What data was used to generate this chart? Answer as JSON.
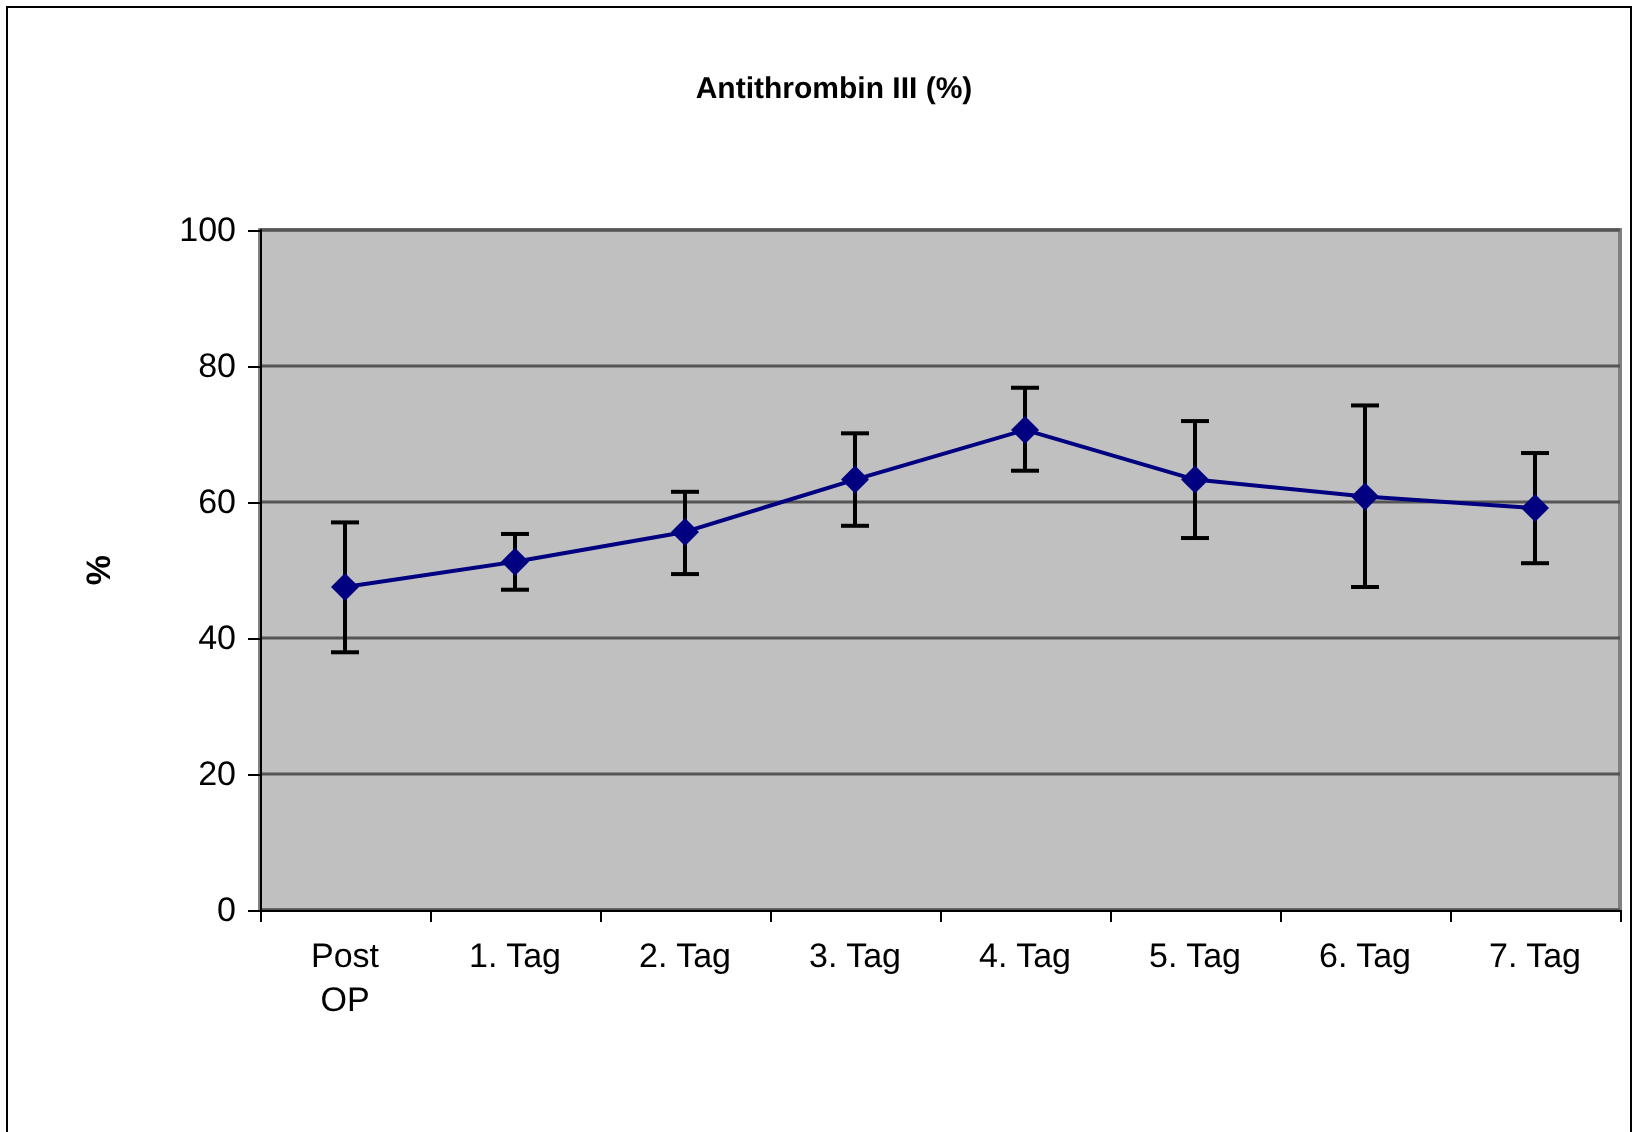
{
  "chart_data": {
    "type": "line",
    "title": "Antithrombin III (%)",
    "ylabel": "%",
    "categories": [
      "Post\nOP",
      "1. Tag",
      "2. Tag",
      "3. Tag",
      "4. Tag",
      "5. Tag",
      "6. Tag",
      "7. Tag"
    ],
    "series": [
      {
        "color": "#000080",
        "values": [
          47.5,
          51.2,
          55.6,
          63.3,
          70.6,
          63.3,
          60.8,
          59.1
        ],
        "errors": [
          [
            37.9,
            57.0
          ],
          [
            47.1,
            55.3
          ],
          [
            49.4,
            61.5
          ],
          [
            56.5,
            70.1
          ],
          [
            64.6,
            76.8
          ],
          [
            54.7,
            71.9
          ],
          [
            47.5,
            74.2
          ],
          [
            51.0,
            67.2
          ]
        ]
      }
    ],
    "ylim": [
      0,
      100
    ],
    "yticks": [
      0,
      20,
      40,
      60,
      80,
      100
    ],
    "grid": "y",
    "marker": "diamond",
    "line_style": "solid"
  }
}
